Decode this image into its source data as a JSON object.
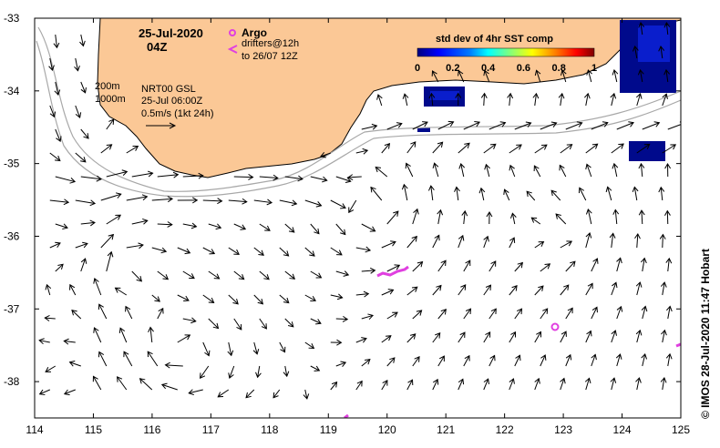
{
  "map": {
    "date": "25-Jul-2020",
    "time": "04Z",
    "x_ticks": [
      "114",
      "115",
      "116",
      "117",
      "118",
      "119",
      "120",
      "121",
      "122",
      "123",
      "124",
      "125"
    ],
    "y_ticks": [
      "-33",
      "-34",
      "-35",
      "-36",
      "-37",
      "-38"
    ],
    "lon_range": [
      114,
      125
    ],
    "lat_range": [
      -38.5,
      -33
    ],
    "land_color": "#fbc896",
    "ocean_color": "#ffffff",
    "argo_color": "#e040e0",
    "contour_color": "#a8a8a8"
  },
  "legend": {
    "argo_label": "Argo",
    "argo_icon": "magenta-circle-icon",
    "drifter_label": "drifters@12h",
    "drifter_sub": "to 26/07 12Z",
    "drifter_icon": "magenta-chevron-icon"
  },
  "contours": {
    "label_200": "200m",
    "label_1000": "1000m"
  },
  "product": {
    "name": "NRT00 GSL",
    "time": "25-Jul 06:00Z",
    "scale": "0.5m/s (1kt 24h)"
  },
  "colorbar": {
    "title": "std dev of 4hr SST comp",
    "ticks": [
      "0",
      "0.2",
      "0.4",
      "0.6",
      "0.8",
      "1"
    ],
    "colors": [
      "#00007f",
      "#0000ff",
      "#007fff",
      "#00ffff",
      "#7fff7f",
      "#ffff00",
      "#ff7f00",
      "#ff0000",
      "#7f0000"
    ]
  },
  "credit": "© IMOS 28-Jul-2020 11:47 Hobart"
}
